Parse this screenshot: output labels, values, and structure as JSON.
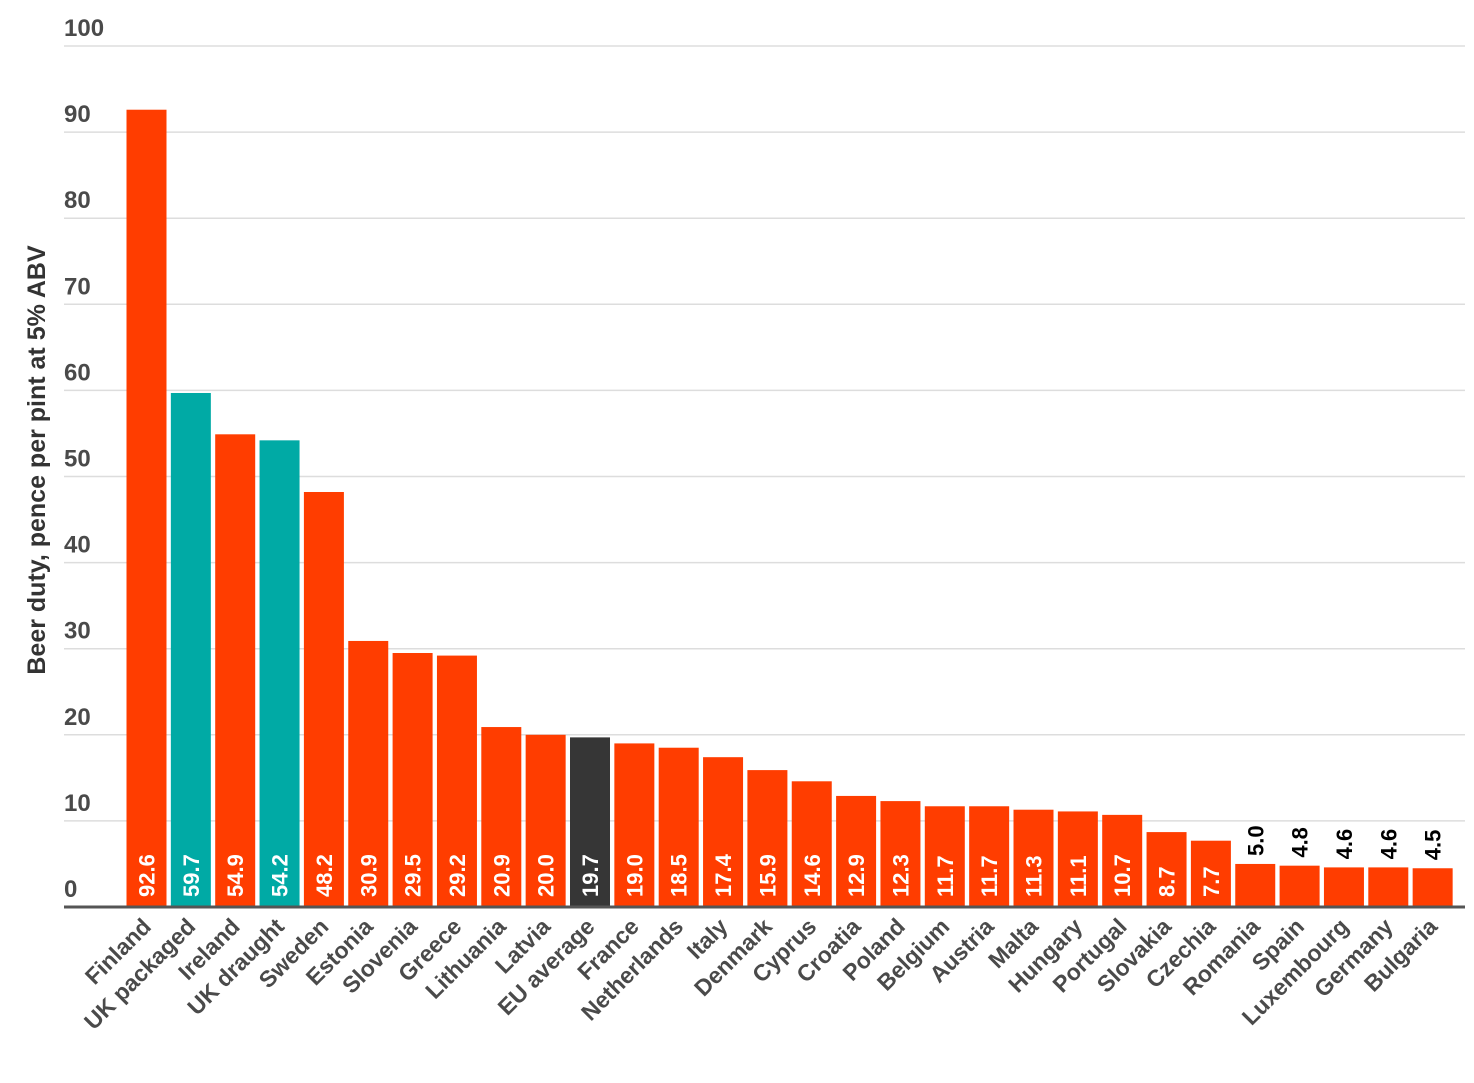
{
  "chart_data": {
    "type": "bar",
    "title": "",
    "xlabel": "",
    "ylabel": "Beer duty, pence per pint at 5% ABV",
    "ylim": [
      0,
      100
    ],
    "yticks": [
      0,
      10,
      20,
      30,
      40,
      50,
      60,
      70,
      80,
      90,
      100
    ],
    "grid": true,
    "legend": "none",
    "colors": {
      "default": "#ff3d00",
      "uk": "#00aaa5",
      "eu_average": "#363636",
      "gridline": "#dddddd",
      "label_inside": "#ffffff",
      "label_outside": "#000000"
    },
    "categories": [
      "Finland",
      "UK packaged",
      "Ireland",
      "UK draught",
      "Sweden",
      "Estonia",
      "Slovenia",
      "Greece",
      "Lithuania",
      "Latvia",
      "EU average",
      "France",
      "Netherlands",
      "Italy",
      "Denmark",
      "Cyprus",
      "Croatia",
      "Poland",
      "Belgium",
      "Austria",
      "Malta",
      "Hungary",
      "Portugal",
      "Slovakia",
      "Czechia",
      "Romania",
      "Spain",
      "Luxembourg",
      "Germany",
      "Bulgaria"
    ],
    "values": [
      92.6,
      59.7,
      54.9,
      54.2,
      48.2,
      30.9,
      29.5,
      29.2,
      20.9,
      20.0,
      19.7,
      19.0,
      18.5,
      17.4,
      15.9,
      14.6,
      12.9,
      12.3,
      11.7,
      11.7,
      11.3,
      11.1,
      10.7,
      8.7,
      7.7,
      5.0,
      4.8,
      4.6,
      4.6,
      4.5
    ],
    "value_labels": [
      "92.6",
      "59.7",
      "54.9",
      "54.2",
      "48.2",
      "30.9",
      "29.5",
      "29.2",
      "20.9",
      "20.0",
      "19.7",
      "19.0",
      "18.5",
      "17.4",
      "15.9",
      "14.6",
      "12.9",
      "12.3",
      "11.7",
      "11.7",
      "11.3",
      "11.1",
      "10.7",
      "8.7",
      "7.7",
      "5.0",
      "4.8",
      "4.6",
      "4.6",
      "4.5"
    ],
    "bar_color_keys": [
      "default",
      "uk",
      "default",
      "uk",
      "default",
      "default",
      "default",
      "default",
      "default",
      "default",
      "eu_average",
      "default",
      "default",
      "default",
      "default",
      "default",
      "default",
      "default",
      "default",
      "default",
      "default",
      "default",
      "default",
      "default",
      "default",
      "default",
      "default",
      "default",
      "default",
      "default"
    ]
  }
}
